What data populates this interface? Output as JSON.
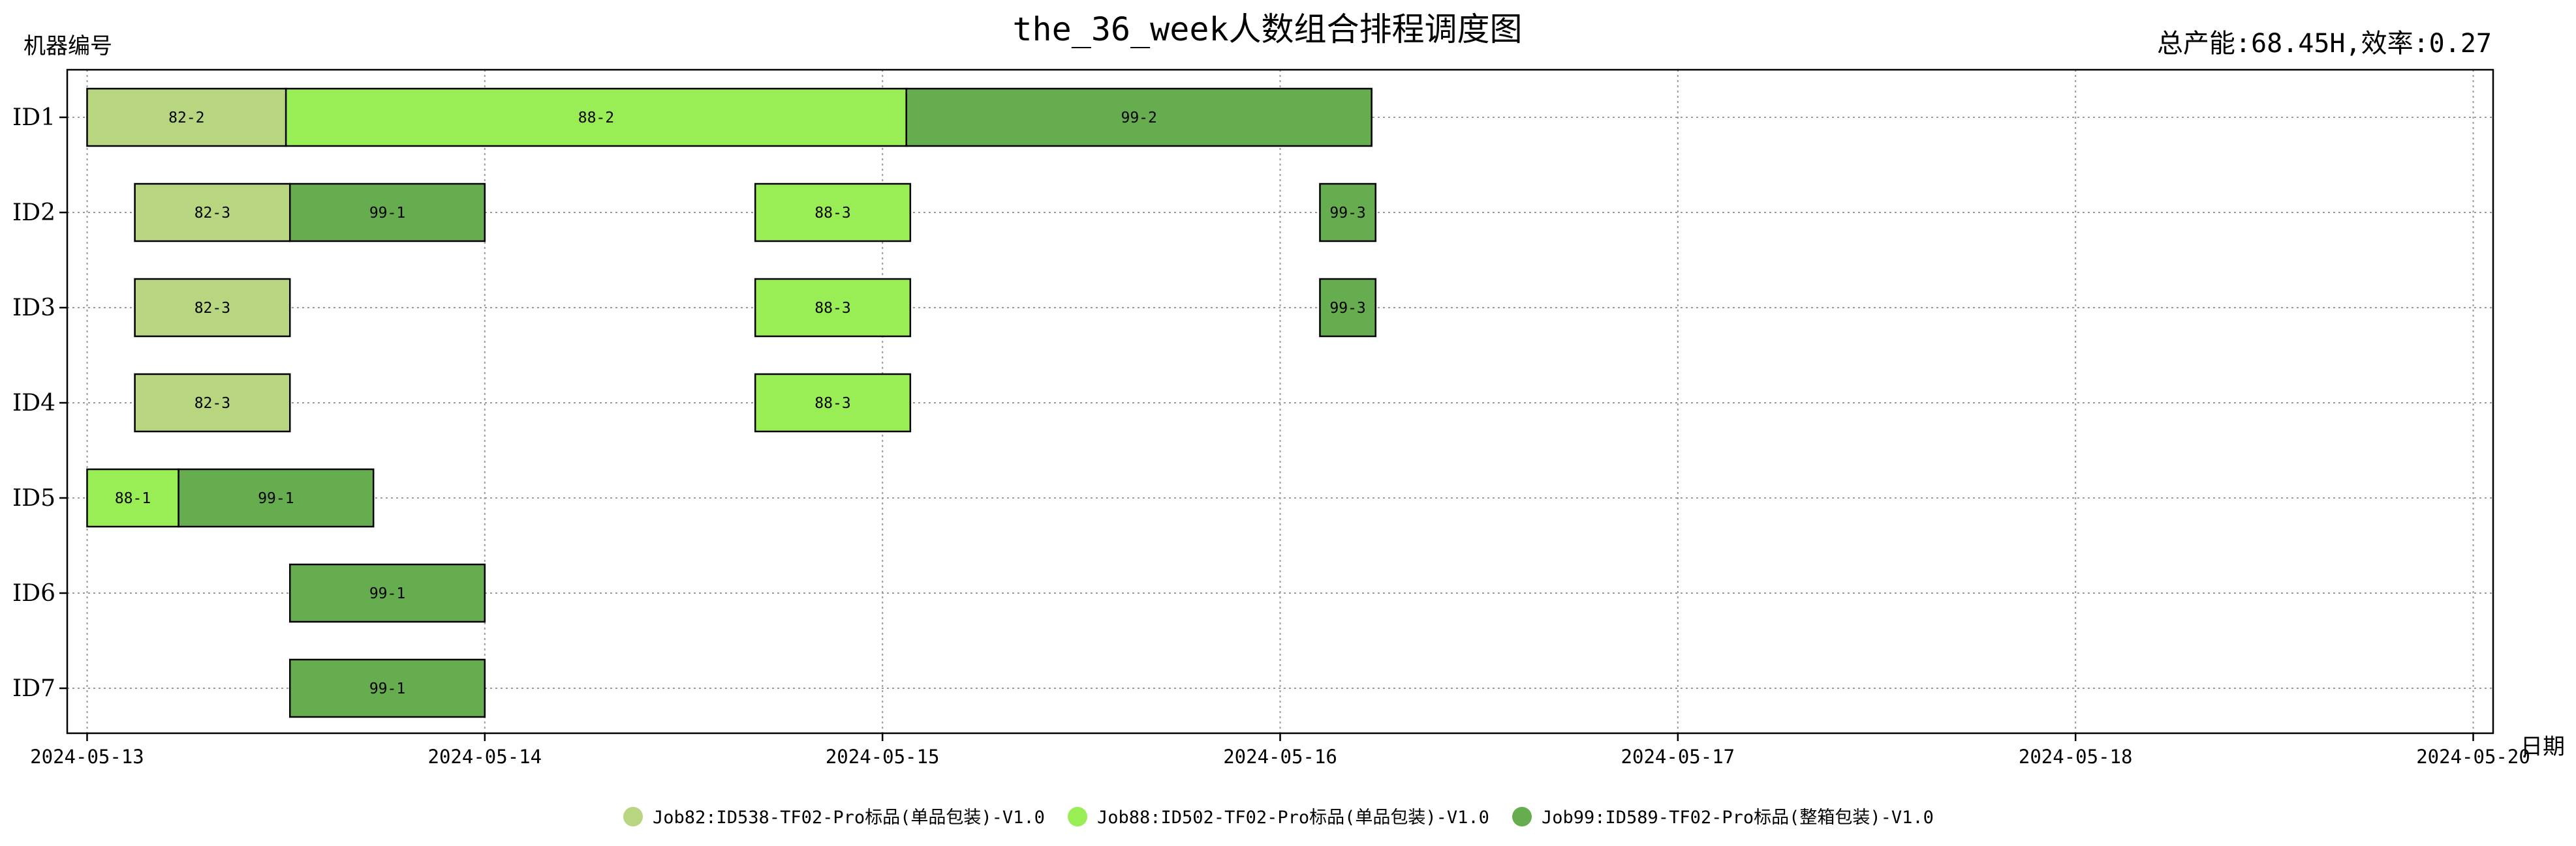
{
  "chart_data": {
    "type": "gantt",
    "title": "the_36_week人数组合排程调度图",
    "ylabel": "机器编号",
    "xlabel": "日期",
    "summary": "总产能:68.45H,效率:0.27",
    "x_ticks": [
      "2024-05-13",
      "2024-05-14",
      "2024-05-15",
      "2024-05-16",
      "2024-05-17",
      "2024-05-18",
      "2024-05-20"
    ],
    "x_range_days": [
      -0.05,
      6.05
    ],
    "machines": [
      "ID1",
      "ID2",
      "ID3",
      "ID4",
      "ID5",
      "ID6",
      "ID7"
    ],
    "grid": true,
    "legend_position": "bottom-center",
    "series": [
      {
        "job": "82",
        "name": "Job82:ID538-TF02-Pro标品(单品包装)-V1.0",
        "color": "#b7d67f"
      },
      {
        "job": "88",
        "name": "Job88:ID502-TF02-Pro标品(单品包装)-V1.0",
        "color": "#98ee54"
      },
      {
        "job": "99",
        "name": "Job99:ID589-TF02-Pro标品(整箱包装)-V1.0",
        "color": "#65ad4f"
      }
    ],
    "tasks": [
      {
        "machine": "ID1",
        "job": "82",
        "label": "82-2",
        "start": 0.0,
        "end": 0.5
      },
      {
        "machine": "ID1",
        "job": "88",
        "label": "88-2",
        "start": 0.5,
        "end": 2.06
      },
      {
        "machine": "ID1",
        "job": "99",
        "label": "99-2",
        "start": 2.06,
        "end": 3.23
      },
      {
        "machine": "ID2",
        "job": "82",
        "label": "82-3",
        "start": 0.12,
        "end": 0.51
      },
      {
        "machine": "ID2",
        "job": "99",
        "label": "99-1",
        "start": 0.51,
        "end": 1.0
      },
      {
        "machine": "ID2",
        "job": "88",
        "label": "88-3",
        "start": 1.68,
        "end": 2.07
      },
      {
        "machine": "ID2",
        "job": "99",
        "label": "99-3",
        "start": 3.1,
        "end": 3.24
      },
      {
        "machine": "ID3",
        "job": "82",
        "label": "82-3",
        "start": 0.12,
        "end": 0.51
      },
      {
        "machine": "ID3",
        "job": "88",
        "label": "88-3",
        "start": 1.68,
        "end": 2.07
      },
      {
        "machine": "ID3",
        "job": "99",
        "label": "99-3",
        "start": 3.1,
        "end": 3.24
      },
      {
        "machine": "ID4",
        "job": "82",
        "label": "82-3",
        "start": 0.12,
        "end": 0.51
      },
      {
        "machine": "ID4",
        "job": "88",
        "label": "88-3",
        "start": 1.68,
        "end": 2.07
      },
      {
        "machine": "ID5",
        "job": "88",
        "label": "88-1",
        "start": 0.0,
        "end": 0.23
      },
      {
        "machine": "ID5",
        "job": "99",
        "label": "99-1",
        "start": 0.23,
        "end": 0.72
      },
      {
        "machine": "ID6",
        "job": "99",
        "label": "99-1",
        "start": 0.51,
        "end": 1.0
      },
      {
        "machine": "ID7",
        "job": "99",
        "label": "99-1",
        "start": 0.51,
        "end": 1.0
      }
    ]
  }
}
